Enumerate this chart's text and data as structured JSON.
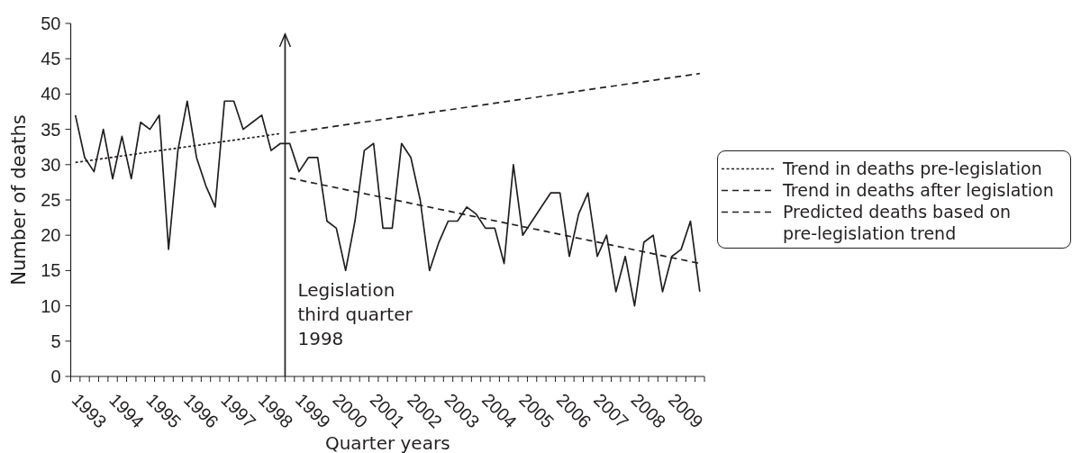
{
  "chart_data": {
    "type": "line",
    "xlabel": "Quarter years",
    "ylabel": "Number of deaths",
    "legend": "right",
    "marker": "none",
    "xlim": [
      1993,
      2010
    ],
    "ylim": [
      0,
      50
    ],
    "yticks": [
      0,
      5,
      10,
      15,
      20,
      25,
      30,
      35,
      40,
      45,
      50
    ],
    "xticks": [
      {
        "value": 1993,
        "label": null
      },
      {
        "value": 1993.25,
        "label": null
      },
      {
        "value": 1993.5,
        "label": "1993"
      },
      {
        "value": 1993.75,
        "label": null
      },
      {
        "value": 1994,
        "label": null
      },
      {
        "value": 1994.25,
        "label": null
      },
      {
        "value": 1994.5,
        "label": "1994"
      },
      {
        "value": 1994.75,
        "label": null
      },
      {
        "value": 1995,
        "label": null
      },
      {
        "value": 1995.25,
        "label": null
      },
      {
        "value": 1995.5,
        "label": "1995"
      },
      {
        "value": 1995.75,
        "label": null
      },
      {
        "value": 1996,
        "label": null
      },
      {
        "value": 1996.25,
        "label": null
      },
      {
        "value": 1996.5,
        "label": "1996"
      },
      {
        "value": 1996.75,
        "label": null
      },
      {
        "value": 1997,
        "label": null
      },
      {
        "value": 1997.25,
        "label": null
      },
      {
        "value": 1997.5,
        "label": "1997"
      },
      {
        "value": 1997.75,
        "label": null
      },
      {
        "value": 1998,
        "label": null
      },
      {
        "value": 1998.25,
        "label": null
      },
      {
        "value": 1998.5,
        "label": "1998"
      },
      {
        "value": 1998.75,
        "label": null
      },
      {
        "value": 1999,
        "label": null
      },
      {
        "value": 1999.25,
        "label": null
      },
      {
        "value": 1999.5,
        "label": "1999"
      },
      {
        "value": 1999.75,
        "label": null
      },
      {
        "value": 2000,
        "label": null
      },
      {
        "value": 2000.25,
        "label": null
      },
      {
        "value": 2000.5,
        "label": "2000"
      },
      {
        "value": 2000.75,
        "label": null
      },
      {
        "value": 2001,
        "label": null
      },
      {
        "value": 2001.25,
        "label": null
      },
      {
        "value": 2001.5,
        "label": "2001"
      },
      {
        "value": 2001.75,
        "label": null
      },
      {
        "value": 2002,
        "label": null
      },
      {
        "value": 2002.25,
        "label": null
      },
      {
        "value": 2002.5,
        "label": "2002"
      },
      {
        "value": 2002.75,
        "label": null
      },
      {
        "value": 2003,
        "label": null
      },
      {
        "value": 2003.25,
        "label": null
      },
      {
        "value": 2003.5,
        "label": "2003"
      },
      {
        "value": 2003.75,
        "label": null
      },
      {
        "value": 2004,
        "label": null
      },
      {
        "value": 2004.25,
        "label": null
      },
      {
        "value": 2004.5,
        "label": "2004"
      },
      {
        "value": 2004.75,
        "label": null
      },
      {
        "value": 2005,
        "label": null
      },
      {
        "value": 2005.25,
        "label": null
      },
      {
        "value": 2005.5,
        "label": "2005"
      },
      {
        "value": 2005.75,
        "label": null
      },
      {
        "value": 2006,
        "label": null
      },
      {
        "value": 2006.25,
        "label": null
      },
      {
        "value": 2006.5,
        "label": "2006"
      },
      {
        "value": 2006.75,
        "label": null
      },
      {
        "value": 2007,
        "label": null
      },
      {
        "value": 2007.25,
        "label": null
      },
      {
        "value": 2007.5,
        "label": "2007"
      },
      {
        "value": 2007.75,
        "label": null
      },
      {
        "value": 2008,
        "label": null
      },
      {
        "value": 2008.25,
        "label": null
      },
      {
        "value": 2008.5,
        "label": "2008"
      },
      {
        "value": 2008.75,
        "label": null
      },
      {
        "value": 2009,
        "label": null
      },
      {
        "value": 2009.25,
        "label": null
      },
      {
        "value": 2009.5,
        "label": "2009"
      },
      {
        "value": 2009.75,
        "label": null
      },
      {
        "value": 2010,
        "label": null
      }
    ],
    "x": [
      1993.125,
      1993.375,
      1993.625,
      1993.875,
      1994.125,
      1994.375,
      1994.625,
      1994.875,
      1995.125,
      1995.375,
      1995.625,
      1995.875,
      1996.125,
      1996.375,
      1996.625,
      1996.875,
      1997.125,
      1997.375,
      1997.625,
      1997.875,
      1998.125,
      1998.375,
      1998.625,
      1998.875,
      1999.125,
      1999.375,
      1999.625,
      1999.875,
      2000.125,
      2000.375,
      2000.625,
      2000.875,
      2001.125,
      2001.375,
      2001.625,
      2001.875,
      2002.125,
      2002.375,
      2002.625,
      2002.875,
      2003.125,
      2003.375,
      2003.625,
      2003.875,
      2004.125,
      2004.375,
      2004.625,
      2004.875,
      2005.125,
      2005.375,
      2005.625,
      2005.875,
      2006.125,
      2006.375,
      2006.625,
      2006.875,
      2007.125,
      2007.375,
      2007.625,
      2007.875,
      2008.125,
      2008.375,
      2008.625,
      2008.875,
      2009.125,
      2009.375,
      2009.625,
      2009.875
    ],
    "series": [
      {
        "color": "#231f20",
        "line_style": "solid",
        "values": [
          37,
          31,
          29,
          35,
          28,
          34,
          28,
          36,
          35,
          37,
          18,
          32,
          39,
          31,
          27,
          24,
          39,
          39,
          35,
          36,
          37,
          32,
          33,
          33,
          29,
          31,
          31,
          22,
          21,
          15,
          22,
          32,
          33,
          21,
          21,
          33,
          31,
          25,
          15,
          19,
          22,
          22,
          24,
          23,
          21,
          21,
          16,
          30,
          20,
          22,
          24,
          26,
          26,
          17,
          23,
          26,
          17,
          20,
          12,
          17,
          10,
          19,
          20,
          12,
          17,
          18,
          22,
          12
        ]
      },
      {
        "name": "Trend in deaths pre-legislation",
        "color": "#231f20",
        "line_style": "dotted",
        "x": [
          1993.125,
          1998.625
        ],
        "values": [
          30.3,
          34.4
        ]
      },
      {
        "name": "Trend in deaths after legislation",
        "color": "#231f20",
        "line_style": "dashed",
        "x": [
          1998.875,
          2009.875
        ],
        "values": [
          28.1,
          16
        ]
      },
      {
        "name": "Predicted deaths based on pre-legislation trend",
        "color": "#231f20",
        "line_style": "dashed",
        "x": [
          1998.875,
          2009.875
        ],
        "values": [
          34.5,
          42.9
        ]
      }
    ],
    "ref_lines": [
      {
        "axis": "x",
        "value": 1998.75,
        "label": "Legislation\nthird quarter\n1998",
        "color": "#231f20"
      }
    ]
  }
}
